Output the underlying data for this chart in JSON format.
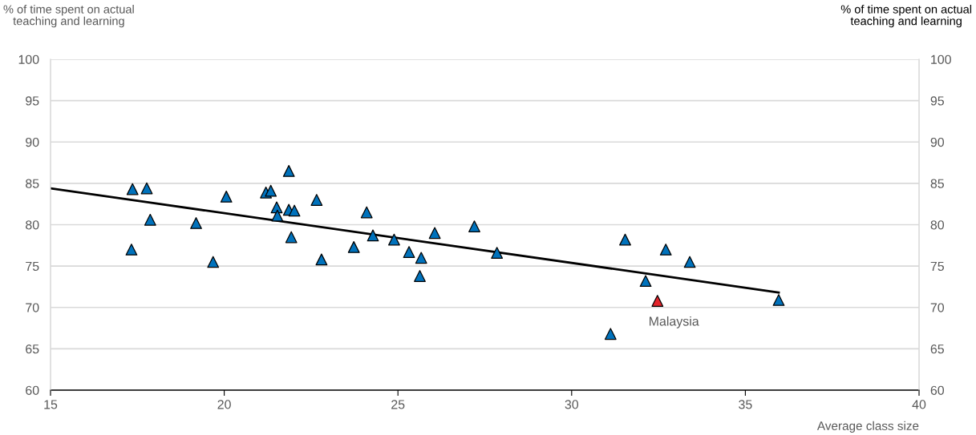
{
  "chart_data": {
    "type": "scatter",
    "ylabel": "% of time spent on actual\nteaching and learning",
    "y2label": "% of time spent on actual\nteaching and learning",
    "xlabel": "Average class size",
    "xlim": [
      15,
      40
    ],
    "xticks": [
      15,
      20,
      25,
      30,
      35,
      40
    ],
    "ylim": [
      60,
      100
    ],
    "yticks": [
      60,
      65,
      70,
      75,
      80,
      85,
      90,
      95,
      100
    ],
    "y2lim": [
      60,
      100
    ],
    "y2ticks": [
      60,
      65,
      70,
      75,
      80,
      85,
      90,
      95,
      100
    ],
    "grid": "y",
    "marker": "triangle",
    "series": [
      {
        "color": "#0072bc",
        "x": [
          17.36,
          17.77,
          17.87,
          17.33,
          19.19,
          19.68,
          20.06,
          21.2,
          21.34,
          21.86,
          21.51,
          21.53,
          21.86,
          22.02,
          21.93,
          22.66,
          22.8,
          24.1,
          24.28,
          23.73,
          24.89,
          25.32,
          25.67,
          25.63,
          26.06,
          27.2,
          27.85,
          31.54,
          32.71,
          33.4,
          32.13,
          35.96,
          31.12
        ],
        "values": [
          84.3,
          84.4,
          80.6,
          77.0,
          80.2,
          75.5,
          83.4,
          83.9,
          84.1,
          86.5,
          82.1,
          81.1,
          81.8,
          81.7,
          78.5,
          83.0,
          75.8,
          81.5,
          78.7,
          77.3,
          78.2,
          76.7,
          76.0,
          73.8,
          79.0,
          79.8,
          76.6,
          78.2,
          77.0,
          75.5,
          73.2,
          70.9,
          66.8
        ]
      },
      {
        "color": "#e3242b",
        "x": [
          32.47
        ],
        "values": [
          70.8
        ]
      },
      {
        "type": "line",
        "color": "#000000",
        "marker": "none",
        "x": [
          15,
          35.96
        ],
        "values": [
          84.4,
          71.8
        ]
      }
    ],
    "annotations": [
      {
        "text": "Malaysia",
        "x": 32.47,
        "y": 70.8
      }
    ]
  }
}
